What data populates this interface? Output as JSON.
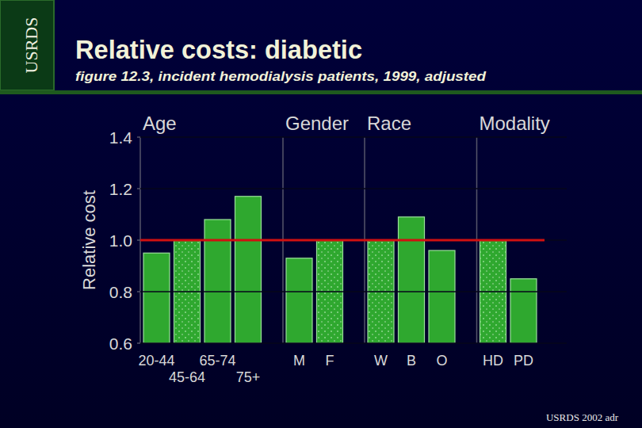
{
  "chart_data": {
    "type": "bar",
    "title": "Relative costs: diabetic",
    "subtitle": "figure 12.3, incident hemodialysis patients, 1999, adjusted",
    "y_label": "Relative cost",
    "categories": [
      "20-44",
      "45-64",
      "65-74",
      "75+",
      "M",
      "F",
      "W",
      "B",
      "O",
      "HD",
      "PD"
    ],
    "values": [
      0.95,
      1.0,
      1.08,
      1.17,
      0.93,
      1.0,
      1.0,
      1.09,
      0.96,
      1.0,
      0.85
    ],
    "color": "#2fa82f",
    "category_groups": [
      {
        "label": "Age",
        "count": 4
      },
      {
        "label": "Gender",
        "count": 2
      },
      {
        "label": "Race",
        "count": 3
      },
      {
        "label": "Modality",
        "count": 2
      }
    ],
    "reference_line": 1,
    "ylim": [
      0.6,
      1.4
    ],
    "yticks": [
      0.6,
      0.8,
      {
        "value": 1,
        "label": "1.0"
      },
      1.2,
      1.4
    ],
    "grid": true
  },
  "side_label": "USRDS",
  "source": "USRDS 2002 adr"
}
